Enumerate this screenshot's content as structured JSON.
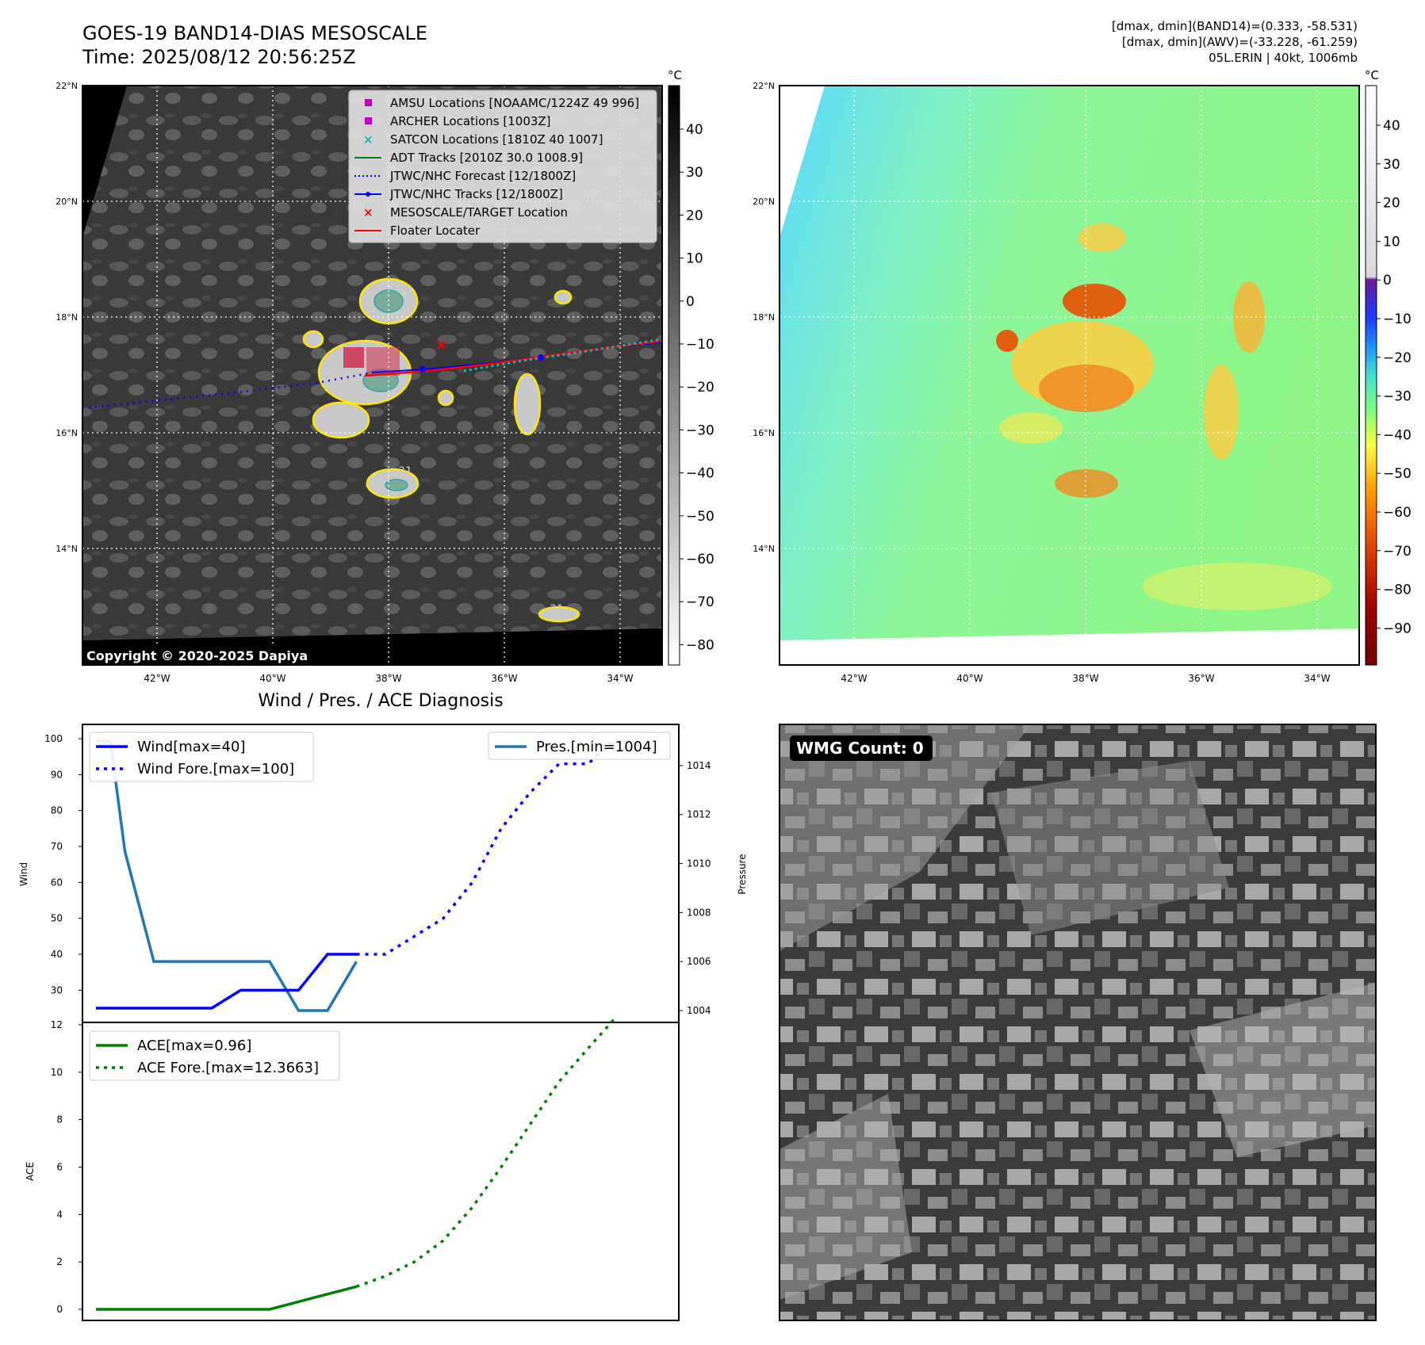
{
  "header": {
    "title": "GOES-19 BAND14-DIAS MESOSCALE",
    "time": "Time: 2025/08/12 20:56:25Z",
    "stats_line1": "[dmax, dmin](BAND14)=(0.333, -58.531)",
    "stats_line2": "[dmax, dmin](AWV)=(-33.228, -61.259)",
    "stats_line3": "05L.ERIN | 40kt, 1006mb"
  },
  "map_axes": {
    "lat_ticks": [
      "22°N",
      "20°N",
      "18°N",
      "16°N",
      "14°N"
    ],
    "lon_ticks": [
      "42°W",
      "40°W",
      "38°W",
      "36°W",
      "34°W"
    ]
  },
  "ir_panel": {
    "colorbar_unit": "°C",
    "colorbar_ticks": [
      "40",
      "30",
      "20",
      "10",
      "0",
      "−10",
      "−20",
      "−30",
      "−40",
      "−50",
      "−60",
      "−70",
      "−80"
    ],
    "contour_label": "-31",
    "copyright": "Copyright © 2020-2025 Dapiya",
    "legend": [
      {
        "label": "AMSU Locations [NOAAMC/1224Z 49 996]",
        "color": "#c000c0",
        "marker": "square"
      },
      {
        "label": "ARCHER Locations [1003Z]",
        "color": "#c000c0",
        "marker": "square"
      },
      {
        "label": "SATCON Locations [1810Z 40 1007]",
        "color": "#00bfbf",
        "marker": "x"
      },
      {
        "label": "ADT Tracks [2010Z 30.0 1008.9]",
        "color": "#008000",
        "marker": "line"
      },
      {
        "label": "JTWC/NHC Forecast [12/1800Z]",
        "color": "#0000ff",
        "marker": "dotted"
      },
      {
        "label": "JTWC/NHC Tracks [12/1800Z]",
        "color": "#0000ff",
        "marker": "line-dot"
      },
      {
        "label": "MESOSCALE/TARGET Location",
        "color": "#ff0000",
        "marker": "x"
      },
      {
        "label": "Floater Locater",
        "color": "#ff0000",
        "marker": "line"
      }
    ]
  },
  "wv_panel": {
    "colorbar_unit": "°C",
    "colorbar_ticks": [
      "40",
      "30",
      "20",
      "10",
      "0",
      "−10",
      "−20",
      "−30",
      "−40",
      "−50",
      "−60",
      "−70",
      "−80",
      "−90"
    ]
  },
  "wmg_panel": {
    "badge": "WMG Count: 0"
  },
  "diagnosis": {
    "title": "Wind / Pres. / ACE Diagnosis",
    "wind_ylabel": "Wind",
    "pres_ylabel": "Pressure",
    "ace_ylabel": "ACE",
    "wind_ticks": [
      "100",
      "90",
      "80",
      "70",
      "60",
      "50",
      "40",
      "30"
    ],
    "pres_ticks": [
      "1014",
      "1012",
      "1010",
      "1008",
      "1006",
      "1004"
    ],
    "ace_ticks": [
      "12",
      "10",
      "8",
      "6",
      "4",
      "2",
      "0"
    ]
  },
  "chart_data": [
    {
      "type": "line",
      "title": "Wind / Pres. / ACE Diagnosis",
      "ylabel": "Wind",
      "ylim": [
        23,
        104
      ],
      "x_index": [
        0,
        1,
        2,
        3,
        4,
        5,
        6,
        7,
        8,
        9,
        10,
        11,
        12,
        13,
        14,
        15,
        16,
        17,
        18,
        19
      ],
      "series": [
        {
          "name": "Wind[max=40]",
          "style": "solid",
          "color": "#0000ff",
          "x": [
            0,
            1,
            2,
            3,
            4,
            5,
            6,
            7,
            8,
            9
          ],
          "values": [
            25,
            25,
            25,
            25,
            25,
            30,
            30,
            30,
            40,
            40
          ]
        },
        {
          "name": "Wind Fore.[max=100]",
          "style": "dotted",
          "color": "#0000ff",
          "x": [
            9,
            10,
            11,
            12,
            13,
            14,
            15,
            16,
            17,
            18
          ],
          "values": [
            40,
            40,
            45,
            50,
            60,
            75,
            85,
            93,
            93,
            100
          ]
        }
      ]
    },
    {
      "type": "line",
      "ylabel": "Pressure",
      "ylim": [
        1003.5,
        1015.3
      ],
      "series": [
        {
          "name": "Pres.[min=1004]",
          "style": "solid",
          "color": "#1f77b4",
          "x": [
            0,
            0.5,
            1,
            2,
            3,
            4,
            5,
            6,
            7,
            8,
            9
          ],
          "values": [
            1015,
            1015,
            1010.5,
            1006,
            1006,
            1006,
            1006,
            1006,
            1004,
            1004,
            1006
          ]
        }
      ]
    },
    {
      "type": "line",
      "ylabel": "ACE",
      "ylim": [
        -0.5,
        13
      ],
      "series": [
        {
          "name": "ACE[max=0.96]",
          "style": "solid",
          "color": "#008000",
          "x": [
            0,
            1,
            2,
            3,
            4,
            5,
            6,
            7,
            8,
            9
          ],
          "values": [
            0,
            0,
            0,
            0,
            0,
            0,
            0,
            0.32,
            0.64,
            0.96
          ]
        },
        {
          "name": "ACE Fore.[max=12.3663]",
          "style": "dotted",
          "color": "#008000",
          "x": [
            9,
            10,
            11,
            12,
            13,
            14,
            15,
            16,
            17,
            18
          ],
          "values": [
            0.96,
            1.4,
            2.0,
            2.9,
            4.3,
            6.0,
            7.8,
            9.6,
            11.0,
            12.3663
          ]
        }
      ]
    }
  ]
}
